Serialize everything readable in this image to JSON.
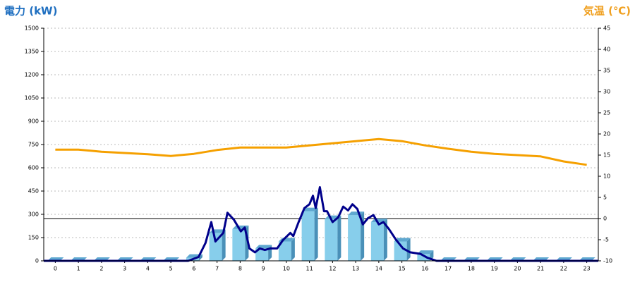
{
  "chart_data": {
    "type": "bar",
    "y_label": "電力 (kW)",
    "y2_label": "気温 (℃)",
    "categories": [
      "0",
      "1",
      "2",
      "3",
      "4",
      "5",
      "6",
      "7",
      "8",
      "9",
      "10",
      "11",
      "12",
      "13",
      "14",
      "15",
      "16",
      "17",
      "18",
      "19",
      "20",
      "21",
      "22",
      "23"
    ],
    "xlim": [
      -0.5,
      23.5
    ],
    "ylim": [
      0,
      1500
    ],
    "yticks": [
      0,
      150,
      300,
      450,
      600,
      750,
      900,
      1050,
      1200,
      1350,
      1500
    ],
    "y2lim": [
      -10,
      45
    ],
    "y2ticks": [
      -10,
      -5,
      0,
      5,
      10,
      15,
      20,
      25,
      30,
      35,
      40,
      45
    ],
    "grid": true,
    "series": [
      {
        "type": "bar",
        "color": "#87ceeb",
        "values": [
          0,
          0,
          0,
          0,
          0,
          0,
          20,
          180,
          205,
          80,
          125,
          320,
          270,
          295,
          250,
          125,
          45,
          0,
          0,
          0,
          0,
          0,
          0,
          0
        ]
      },
      {
        "type": "line",
        "color": "#00008b",
        "x": [
          -0.5,
          5.75,
          6.2,
          6.5,
          6.75,
          6.93,
          7.27,
          7.45,
          7.73,
          8.03,
          8.2,
          8.4,
          8.64,
          8.85,
          9.07,
          9.3,
          9.6,
          9.86,
          10.17,
          10.3,
          10.53,
          10.78,
          11.0,
          11.15,
          11.27,
          11.45,
          11.63,
          11.76,
          12.0,
          12.24,
          12.46,
          12.67,
          12.86,
          13.07,
          13.31,
          13.53,
          13.77,
          14.0,
          14.2,
          14.44,
          14.75,
          15.05,
          15.36,
          15.8,
          16.1,
          16.5,
          23.5
        ],
        "values": [
          0,
          0,
          25,
          115,
          250,
          125,
          180,
          310,
          265,
          190,
          215,
          80,
          55,
          80,
          70,
          80,
          80,
          135,
          180,
          160,
          250,
          340,
          365,
          420,
          340,
          475,
          320,
          320,
          250,
          280,
          350,
          325,
          365,
          335,
          235,
          275,
          295,
          235,
          250,
          205,
          135,
          80,
          55,
          45,
          20,
          0,
          0
        ]
      },
      {
        "type": "line",
        "axis": "y2",
        "color": "#f5a000",
        "values": [
          16.3,
          16.3,
          15.8,
          15.5,
          15.2,
          14.8,
          15.3,
          16.2,
          16.8,
          16.8,
          16.8,
          17.3,
          17.8,
          18.3,
          18.8,
          18.3,
          17.3,
          16.5,
          15.8,
          15.3,
          15.0,
          14.7,
          13.5,
          12.7
        ]
      }
    ]
  }
}
